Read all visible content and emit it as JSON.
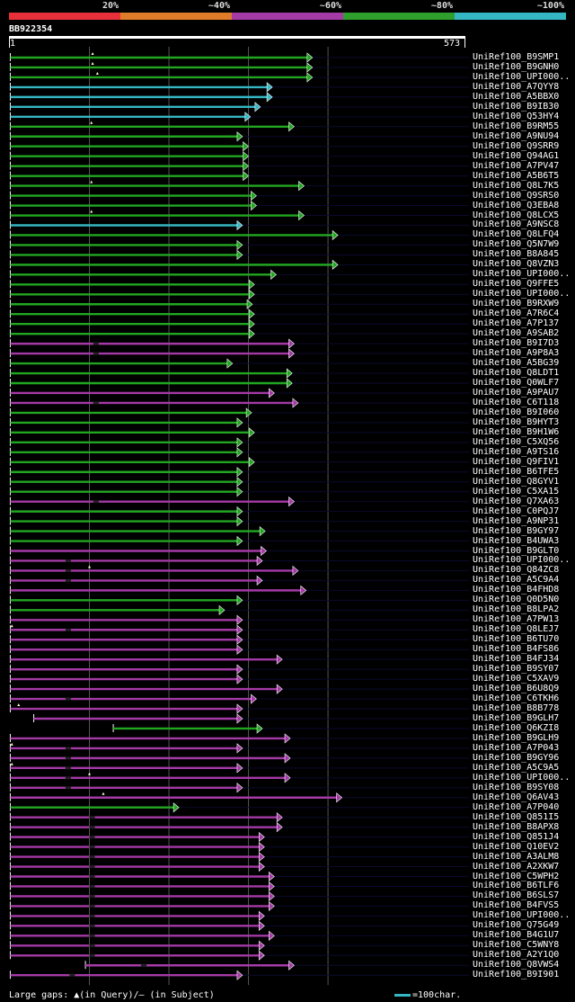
{
  "legend": [
    {
      "label": "20%",
      "color": "#e8303a"
    },
    {
      "label": "~40%",
      "color": "#e07b2a"
    },
    {
      "label": "~60%",
      "color": "#a43aa6"
    },
    {
      "label": "~80%",
      "color": "#2e9e2c"
    },
    {
      "label": "~100%",
      "color": "#35b6c3"
    }
  ],
  "query": {
    "id": "BB922354",
    "start": "1",
    "end": "573"
  },
  "colors": {
    "green": "#22a622",
    "cyan": "#35b6c3",
    "purple": "#a43aa6",
    "gridline": "#555555",
    "hitbg": "#0a0a2e"
  },
  "chart_data": {
    "type": "alignment",
    "query_length": 573,
    "grid_columns": [
      200,
      400
    ],
    "hits": [
      {
        "id": "UniRef100_B9SMP1",
        "start": 1,
        "end": 761,
        "color": "green",
        "gap_marks": [
          208
        ]
      },
      {
        "id": "UniRef100_B9GNH0",
        "start": 1,
        "end": 761,
        "color": "green",
        "gap_marks": [
          208
        ]
      },
      {
        "id": "UniRef100_UPI000..",
        "start": 1,
        "end": 761,
        "color": "green",
        "gap_marks": [
          220
        ]
      },
      {
        "id": "UniRef100_A7QYY8",
        "start": 1,
        "end": 660,
        "color": "cyan"
      },
      {
        "id": "UniRef100_A5BBX0",
        "start": 1,
        "end": 660,
        "color": "cyan"
      },
      {
        "id": "UniRef100_B9IB30",
        "start": 1,
        "end": 630,
        "color": "cyan"
      },
      {
        "id": "UniRef100_Q53HY4",
        "start": 1,
        "end": 605,
        "color": "cyan"
      },
      {
        "id": "UniRef100_B9RM55",
        "start": 1,
        "end": 715,
        "color": "green",
        "gap_marks": [
          205
        ]
      },
      {
        "id": "UniRef100_A9NU94",
        "start": 1,
        "end": 585,
        "color": "green"
      },
      {
        "id": "UniRef100_Q9SRR9",
        "start": 1,
        "end": 600,
        "color": "green"
      },
      {
        "id": "UniRef100_Q94AG1",
        "start": 1,
        "end": 600,
        "color": "green"
      },
      {
        "id": "UniRef100_A7PV47",
        "start": 1,
        "end": 600,
        "color": "green"
      },
      {
        "id": "UniRef100_A5B6T5",
        "start": 1,
        "end": 600,
        "color": "green"
      },
      {
        "id": "UniRef100_Q8L7K5",
        "start": 1,
        "end": 740,
        "color": "green",
        "gap_marks": [
          205
        ]
      },
      {
        "id": "UniRef100_Q9SRS0",
        "start": 1,
        "end": 620,
        "color": "green"
      },
      {
        "id": "UniRef100_Q3EBA8",
        "start": 1,
        "end": 620,
        "color": "green"
      },
      {
        "id": "UniRef100_Q8LCX5",
        "start": 1,
        "end": 740,
        "color": "green",
        "gap_marks": [
          205
        ]
      },
      {
        "id": "UniRef100_A9NSC8",
        "start": 1,
        "end": 585,
        "color": "cyan"
      },
      {
        "id": "UniRef100_Q8LFQ4",
        "start": 1,
        "end": 825,
        "color": "green"
      },
      {
        "id": "UniRef100_Q5N7W9",
        "start": 1,
        "end": 585,
        "color": "green"
      },
      {
        "id": "UniRef100_B8A845",
        "start": 1,
        "end": 585,
        "color": "green"
      },
      {
        "id": "UniRef100_Q8VZN3",
        "start": 1,
        "end": 825,
        "color": "green"
      },
      {
        "id": "UniRef100_UPI000..",
        "start": 1,
        "end": 670,
        "color": "green"
      },
      {
        "id": "UniRef100_Q9FFE5",
        "start": 1,
        "end": 615,
        "color": "green"
      },
      {
        "id": "UniRef100_UPI000..",
        "start": 1,
        "end": 615,
        "color": "green"
      },
      {
        "id": "UniRef100_B9RXW9",
        "start": 1,
        "end": 610,
        "color": "green"
      },
      {
        "id": "UniRef100_A7R6C4",
        "start": 1,
        "end": 615,
        "color": "green"
      },
      {
        "id": "UniRef100_A7P137",
        "start": 1,
        "end": 615,
        "color": "green"
      },
      {
        "id": "UniRef100_A9SAB2",
        "start": 1,
        "end": 615,
        "color": "green"
      },
      {
        "id": "UniRef100_B9I7D3",
        "start": 1,
        "end": 715,
        "color": "purple",
        "gaps": [
          210
        ]
      },
      {
        "id": "UniRef100_A9P8A3",
        "start": 1,
        "end": 715,
        "color": "purple",
        "gaps": [
          210
        ]
      },
      {
        "id": "UniRef100_A5BG39",
        "start": 1,
        "end": 560,
        "color": "green"
      },
      {
        "id": "UniRef100_Q8LDT1",
        "start": 1,
        "end": 710,
        "color": "green"
      },
      {
        "id": "UniRef100_Q0WLF7",
        "start": 1,
        "end": 710,
        "color": "green"
      },
      {
        "id": "UniRef100_A9PAU7",
        "start": 1,
        "end": 665,
        "color": "purple"
      },
      {
        "id": "UniRef100_C6T118",
        "start": 1,
        "end": 725,
        "color": "purple",
        "gaps": [
          210
        ]
      },
      {
        "id": "UniRef100_B9I060",
        "start": 1,
        "end": 608,
        "color": "green"
      },
      {
        "id": "UniRef100_B9HYT3",
        "start": 1,
        "end": 585,
        "color": "green"
      },
      {
        "id": "UniRef100_B9H1W6",
        "start": 1,
        "end": 615,
        "color": "green"
      },
      {
        "id": "UniRef100_C5XQ56",
        "start": 1,
        "end": 585,
        "color": "green"
      },
      {
        "id": "UniRef100_A9TS16",
        "start": 1,
        "end": 585,
        "color": "green"
      },
      {
        "id": "UniRef100_Q9FIV1",
        "start": 1,
        "end": 615,
        "color": "green"
      },
      {
        "id": "UniRef100_B6TFE5",
        "start": 1,
        "end": 585,
        "color": "green"
      },
      {
        "id": "UniRef100_Q8GYV1",
        "start": 1,
        "end": 585,
        "color": "green"
      },
      {
        "id": "UniRef100_C5XA15",
        "start": 1,
        "end": 585,
        "color": "green"
      },
      {
        "id": "UniRef100_Q7XA63",
        "start": 1,
        "end": 715,
        "color": "purple",
        "gaps": [
          210
        ]
      },
      {
        "id": "UniRef100_C0PQJ7",
        "start": 1,
        "end": 585,
        "color": "green"
      },
      {
        "id": "UniRef100_A9NP31",
        "start": 1,
        "end": 585,
        "color": "green"
      },
      {
        "id": "UniRef100_B9GY97",
        "start": 1,
        "end": 642,
        "color": "green"
      },
      {
        "id": "UniRef100_B4UWA3",
        "start": 1,
        "end": 585,
        "color": "green"
      },
      {
        "id": "UniRef100_B9GLT0",
        "start": 1,
        "end": 645,
        "color": "purple"
      },
      {
        "id": "UniRef100_UPI000..",
        "start": 1,
        "end": 635,
        "color": "purple",
        "gaps": [
          140
        ]
      },
      {
        "id": "UniRef100_Q84ZC8",
        "start": 1,
        "end": 725,
        "color": "purple",
        "gaps": [
          140
        ],
        "gap_marks": [
          200
        ]
      },
      {
        "id": "UniRef100_A5C9A4",
        "start": 1,
        "end": 635,
        "color": "purple",
        "gaps": [
          140
        ]
      },
      {
        "id": "UniRef100_B4FHD8",
        "start": 1,
        "end": 745,
        "color": "purple"
      },
      {
        "id": "UniRef100_Q0D5N0",
        "start": 1,
        "end": 585,
        "color": "green"
      },
      {
        "id": "UniRef100_B8LPA2",
        "start": 1,
        "end": 540,
        "color": "green"
      },
      {
        "id": "UniRef100_A7PW13",
        "start": 1,
        "end": 585,
        "color": "purple"
      },
      {
        "id": "UniRef100_Q8LEJ7",
        "start": 1,
        "end": 585,
        "color": "purple",
        "gaps": [
          140
        ],
        "gap_marks": [
          5
        ]
      },
      {
        "id": "UniRef100_B6TU70",
        "start": 1,
        "end": 585,
        "color": "purple"
      },
      {
        "id": "UniRef100_B4FS86",
        "start": 1,
        "end": 585,
        "color": "purple"
      },
      {
        "id": "UniRef100_B4FJ34",
        "start": 1,
        "end": 685,
        "color": "purple"
      },
      {
        "id": "UniRef100_B9SY07",
        "start": 1,
        "end": 585,
        "color": "purple"
      },
      {
        "id": "UniRef100_C5XAV9",
        "start": 1,
        "end": 585,
        "color": "purple"
      },
      {
        "id": "UniRef100_B6U8Q9",
        "start": 1,
        "end": 685,
        "color": "purple"
      },
      {
        "id": "UniRef100_C6TKH6",
        "start": 1,
        "end": 620,
        "color": "purple",
        "gaps": [
          140
        ]
      },
      {
        "id": "UniRef100_B8B778",
        "start": 1,
        "end": 585,
        "color": "purple",
        "gap_marks": [
          22
        ]
      },
      {
        "id": "UniRef100_B9GLH7",
        "start": 60,
        "end": 585,
        "color": "purple"
      },
      {
        "id": "UniRef100_Q6KZI8",
        "start": 260,
        "end": 635,
        "color": "green"
      },
      {
        "id": "UniRef100_B9GLH9",
        "start": 1,
        "end": 705,
        "color": "purple"
      },
      {
        "id": "UniRef100_A7P043",
        "start": 1,
        "end": 585,
        "color": "purple",
        "gaps": [
          140
        ],
        "gap_marks": [
          5
        ]
      },
      {
        "id": "UniRef100_B9GY96",
        "start": 1,
        "end": 705,
        "color": "purple",
        "gaps": [
          140
        ]
      },
      {
        "id": "UniRef100_A5C9A5",
        "start": 1,
        "end": 585,
        "color": "purple",
        "gaps": [
          140
        ],
        "gap_marks": [
          5
        ]
      },
      {
        "id": "UniRef100_UPI000..",
        "start": 1,
        "end": 705,
        "color": "purple",
        "gaps": [
          140
        ],
        "gap_marks": [
          200
        ]
      },
      {
        "id": "UniRef100_B9SY08",
        "start": 1,
        "end": 585,
        "color": "purple",
        "gaps": [
          140
        ]
      },
      {
        "id": "UniRef100_Q6AV43",
        "start": 1,
        "end": 835,
        "color": "purple",
        "gap_marks": [
          235
        ]
      },
      {
        "id": "UniRef100_A7P040",
        "start": 1,
        "end": 425,
        "color": "green"
      },
      {
        "id": "UniRef100_Q851I5",
        "start": 1,
        "end": 685,
        "color": "purple",
        "gaps": [
          200
        ]
      },
      {
        "id": "UniRef100_B8APX8",
        "start": 1,
        "end": 685,
        "color": "purple",
        "gaps": [
          200
        ]
      },
      {
        "id": "UniRef100_Q851J4",
        "start": 1,
        "end": 640,
        "color": "purple",
        "gaps": [
          200
        ]
      },
      {
        "id": "UniRef100_Q10EV2",
        "start": 1,
        "end": 640,
        "color": "purple",
        "gaps": [
          200
        ]
      },
      {
        "id": "UniRef100_A3ALM8",
        "start": 1,
        "end": 640,
        "color": "purple",
        "gaps": [
          200
        ]
      },
      {
        "id": "UniRef100_A2XKW7",
        "start": 1,
        "end": 640,
        "color": "purple",
        "gaps": [
          200
        ]
      },
      {
        "id": "UniRef100_C5WPH2",
        "start": 1,
        "end": 665,
        "color": "purple",
        "gaps": [
          200
        ]
      },
      {
        "id": "UniRef100_B6TLF6",
        "start": 1,
        "end": 665,
        "color": "purple",
        "gaps": [
          200
        ]
      },
      {
        "id": "UniRef100_B6SLS7",
        "start": 1,
        "end": 665,
        "color": "purple",
        "gaps": [
          200
        ]
      },
      {
        "id": "UniRef100_B4FVS5",
        "start": 1,
        "end": 665,
        "color": "purple",
        "gaps": [
          200
        ]
      },
      {
        "id": "UniRef100_UPI000..",
        "start": 1,
        "end": 640,
        "color": "purple",
        "gaps": [
          200
        ]
      },
      {
        "id": "UniRef100_Q75G49",
        "start": 1,
        "end": 640,
        "color": "purple",
        "gaps": [
          200
        ]
      },
      {
        "id": "UniRef100_B4G1U7",
        "start": 1,
        "end": 665,
        "color": "purple",
        "gaps": [
          200
        ]
      },
      {
        "id": "UniRef100_C5WNY8",
        "start": 1,
        "end": 640,
        "color": "purple",
        "gaps": [
          200
        ]
      },
      {
        "id": "UniRef100_A2Y1Q0",
        "start": 1,
        "end": 640,
        "color": "purple",
        "gaps": [
          200
        ]
      },
      {
        "id": "UniRef100_Q8VWS4",
        "start": 190,
        "end": 715,
        "color": "purple",
        "gaps": [
          330
        ]
      },
      {
        "id": "UniRef100_B9I901",
        "start": 1,
        "end": 585,
        "color": "purple",
        "gaps": [
          150
        ]
      }
    ]
  },
  "footer": {
    "gaps_text": "Large gaps: ▲(in Query)/– (in Subject)",
    "scale_text": "=100char."
  }
}
